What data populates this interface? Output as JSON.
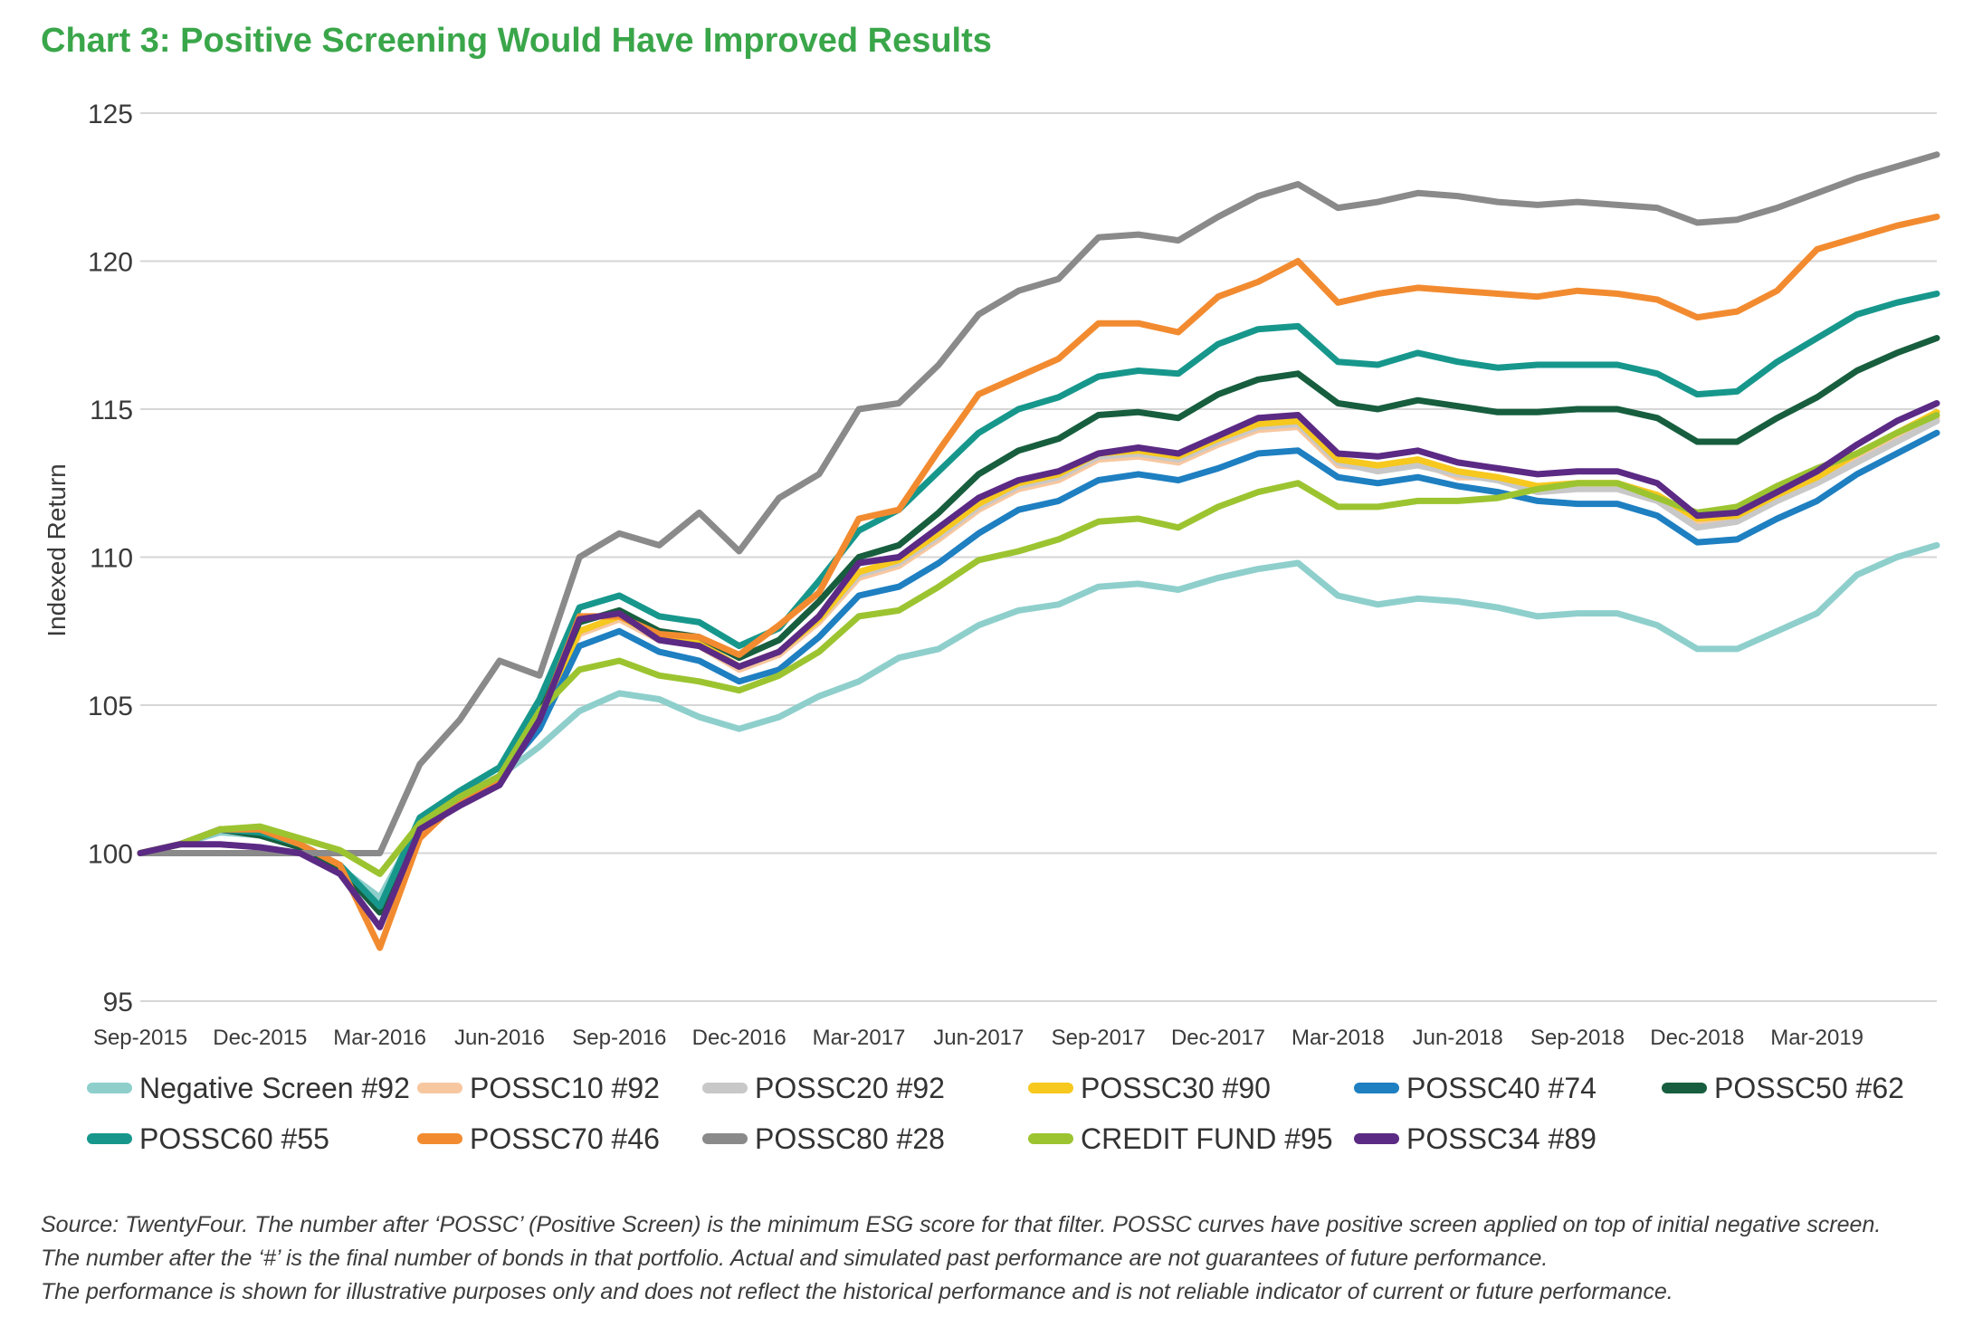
{
  "title": "Chart 3: Positive Screening Would Have Improved Results",
  "source_lines": [
    "Source: TwentyFour. The number after ‘POSSC’ (Positive Screen) is the minimum ESG score for that filter. POSSC curves have positive screen applied on top of initial negative screen.",
    "The number after the ‘#’ is the final number of bonds in that portfolio. Actual and simulated past performance are not guarantees of future performance.",
    "The performance is shown for illustrative purposes only and does not reflect the historical performance and is not reliable indicator of current or future performance."
  ],
  "chart_data": {
    "type": "line",
    "ylabel": "Indexed Return",
    "xlabel": "",
    "ylim": [
      95,
      125
    ],
    "yticks": [
      95,
      100,
      105,
      110,
      115,
      120,
      125
    ],
    "xlim": [
      "2015-09",
      "2019-06"
    ],
    "xticks": [
      "Sep-2015",
      "Dec-2015",
      "Mar-2016",
      "Jun-2016",
      "Sep-2016",
      "Dec-2016",
      "Mar-2017",
      "Jun-2017",
      "Sep-2017",
      "Dec-2017",
      "Mar-2018",
      "Jun-2018",
      "Sep-2018",
      "Dec-2018",
      "Mar-2019"
    ],
    "grid": "horizontal",
    "legend_position": "bottom",
    "x": [
      "2015-09",
      "2015-10",
      "2015-11",
      "2015-12",
      "2016-01",
      "2016-02",
      "2016-03",
      "2016-04",
      "2016-05",
      "2016-06",
      "2016-07",
      "2016-08",
      "2016-09",
      "2016-10",
      "2016-11",
      "2016-12",
      "2017-01",
      "2017-02",
      "2017-03",
      "2017-04",
      "2017-05",
      "2017-06",
      "2017-07",
      "2017-08",
      "2017-09",
      "2017-10",
      "2017-11",
      "2017-12",
      "2018-01",
      "2018-02",
      "2018-03",
      "2018-04",
      "2018-05",
      "2018-06",
      "2018-07",
      "2018-08",
      "2018-09",
      "2018-10",
      "2018-11",
      "2018-12",
      "2019-01",
      "2019-02",
      "2019-03",
      "2019-04",
      "2019-05",
      "2019-06"
    ],
    "series": [
      {
        "name": "Negative Screen #92",
        "color": "#8ecfcc",
        "values": [
          100,
          100.3,
          100.7,
          100.6,
          100.2,
          99.5,
          98.5,
          101.0,
          101.8,
          102.6,
          103.6,
          104.8,
          105.4,
          105.2,
          104.6,
          104.2,
          104.6,
          105.3,
          105.8,
          106.6,
          106.9,
          107.7,
          108.2,
          108.4,
          109.0,
          109.1,
          108.9,
          109.3,
          109.6,
          109.8,
          108.7,
          108.4,
          108.6,
          108.5,
          108.3,
          108.0,
          108.1,
          108.1,
          107.7,
          106.9,
          106.9,
          107.5,
          108.1,
          109.4,
          110.0,
          110.4
        ]
      },
      {
        "name": "POSSC10 #92",
        "color": "#f7c7a0",
        "values": [
          100,
          100.3,
          100.8,
          100.6,
          100.2,
          99.5,
          98.0,
          101.0,
          101.9,
          102.6,
          104.5,
          107.4,
          107.9,
          107.2,
          107.0,
          106.2,
          106.7,
          107.8,
          109.3,
          109.7,
          110.6,
          111.6,
          112.3,
          112.6,
          113.3,
          113.4,
          113.2,
          113.8,
          114.3,
          114.4,
          113.1,
          113.0,
          113.2,
          112.7,
          112.7,
          112.3,
          112.4,
          112.4,
          112.1,
          111.2,
          111.3,
          112.0,
          112.6,
          113.3,
          114.0,
          114.7
        ]
      },
      {
        "name": "POSSC20 #92",
        "color": "#c8c8c8",
        "values": [
          100,
          100.3,
          100.8,
          100.6,
          100.2,
          99.5,
          98.0,
          101.0,
          101.9,
          102.6,
          104.6,
          107.5,
          108.0,
          107.3,
          107.1,
          106.3,
          106.8,
          107.9,
          109.4,
          109.8,
          110.7,
          111.7,
          112.4,
          112.7,
          113.4,
          113.5,
          113.3,
          113.9,
          114.4,
          114.5,
          113.2,
          112.9,
          113.1,
          112.8,
          112.6,
          112.2,
          112.3,
          112.3,
          111.9,
          111.0,
          111.2,
          111.9,
          112.5,
          113.2,
          113.9,
          114.6
        ]
      },
      {
        "name": "POSSC30 #90",
        "color": "#f7c81e",
        "values": [
          100,
          100.3,
          100.8,
          100.6,
          100.2,
          99.5,
          98.0,
          101.0,
          101.9,
          102.6,
          104.6,
          107.5,
          108.0,
          107.3,
          107.1,
          106.3,
          106.8,
          107.9,
          109.5,
          109.9,
          110.8,
          111.8,
          112.5,
          112.8,
          113.5,
          113.6,
          113.4,
          114.0,
          114.5,
          114.6,
          113.3,
          113.1,
          113.3,
          112.9,
          112.7,
          112.4,
          112.5,
          112.5,
          112.1,
          111.3,
          111.4,
          112.1,
          112.7,
          113.5,
          114.2,
          114.9
        ]
      },
      {
        "name": "POSSC40 #74",
        "color": "#1e7fc1",
        "values": [
          100,
          100.3,
          100.8,
          100.6,
          100.2,
          99.5,
          98.0,
          101.0,
          101.9,
          102.6,
          104.2,
          107.0,
          107.5,
          106.8,
          106.5,
          105.8,
          106.2,
          107.3,
          108.7,
          109.0,
          109.8,
          110.8,
          111.6,
          111.9,
          112.6,
          112.8,
          112.6,
          113.0,
          113.5,
          113.6,
          112.7,
          112.5,
          112.7,
          112.4,
          112.2,
          111.9,
          111.8,
          111.8,
          111.4,
          110.5,
          110.6,
          111.3,
          111.9,
          112.8,
          113.5,
          114.2
        ]
      },
      {
        "name": "POSSC50 #62",
        "color": "#175e3e",
        "values": [
          100,
          100.3,
          100.8,
          100.6,
          100.2,
          99.5,
          98.0,
          101.0,
          101.9,
          102.6,
          104.7,
          107.8,
          108.2,
          107.5,
          107.3,
          106.6,
          107.2,
          108.5,
          110.0,
          110.4,
          111.5,
          112.8,
          113.6,
          114.0,
          114.8,
          114.9,
          114.7,
          115.5,
          116.0,
          116.2,
          115.2,
          115.0,
          115.3,
          115.1,
          114.9,
          114.9,
          115.0,
          115.0,
          114.7,
          113.9,
          113.9,
          114.7,
          115.4,
          116.3,
          116.9,
          117.4
        ]
      },
      {
        "name": "POSSC60 #55",
        "color": "#17978c",
        "values": [
          100,
          100.3,
          100.8,
          100.7,
          100.3,
          99.6,
          98.2,
          101.2,
          102.1,
          102.9,
          105.2,
          108.3,
          108.7,
          108.0,
          107.8,
          107.0,
          107.6,
          109.2,
          110.9,
          111.6,
          112.9,
          114.2,
          115.0,
          115.4,
          116.1,
          116.3,
          116.2,
          117.2,
          117.7,
          117.8,
          116.6,
          116.5,
          116.9,
          116.6,
          116.4,
          116.5,
          116.5,
          116.5,
          116.2,
          115.5,
          115.6,
          116.6,
          117.4,
          118.2,
          118.6,
          118.9
        ]
      },
      {
        "name": "POSSC70 #46",
        "color": "#f28b30",
        "values": [
          100,
          100.3,
          100.8,
          100.8,
          100.3,
          99.6,
          96.8,
          100.5,
          101.8,
          102.4,
          104.5,
          108.0,
          108.0,
          107.4,
          107.3,
          106.7,
          107.7,
          108.8,
          111.3,
          111.6,
          113.6,
          115.5,
          116.1,
          116.7,
          117.9,
          117.9,
          117.6,
          118.8,
          119.3,
          120.0,
          118.6,
          118.9,
          119.1,
          119.0,
          118.9,
          118.8,
          119.0,
          118.9,
          118.7,
          118.1,
          118.3,
          119.0,
          120.4,
          120.8,
          121.2,
          121.5
        ]
      },
      {
        "name": "POSSC80 #28",
        "color": "#8a8a8a",
        "values": [
          100,
          100,
          100,
          100,
          100,
          100,
          100,
          103.0,
          104.5,
          106.5,
          106.0,
          110.0,
          110.8,
          110.4,
          111.5,
          110.2,
          112.0,
          112.8,
          115.0,
          115.2,
          116.5,
          118.2,
          119.0,
          119.4,
          120.8,
          120.9,
          120.7,
          121.5,
          122.2,
          122.6,
          121.8,
          122.0,
          122.3,
          122.2,
          122.0,
          121.9,
          122.0,
          121.9,
          121.8,
          121.3,
          121.4,
          121.8,
          122.3,
          122.8,
          123.2,
          123.6
        ]
      },
      {
        "name": "CREDIT FUND #95",
        "color": "#9cc430",
        "values": [
          100,
          100.3,
          100.8,
          100.9,
          100.5,
          100.1,
          99.3,
          101.0,
          101.9,
          102.6,
          104.8,
          106.2,
          106.5,
          106.0,
          105.8,
          105.5,
          106.0,
          106.8,
          108.0,
          108.2,
          109.0,
          109.9,
          110.2,
          110.6,
          111.2,
          111.3,
          111.0,
          111.7,
          112.2,
          112.5,
          111.7,
          111.7,
          111.9,
          111.9,
          112.0,
          112.3,
          112.5,
          112.5,
          112.0,
          111.5,
          111.7,
          112.4,
          113.0,
          113.5,
          114.2,
          114.8
        ]
      },
      {
        "name": "POSSC34 #89",
        "color": "#5b2a84",
        "values": [
          100,
          100.3,
          100.3,
          100.2,
          100.0,
          99.3,
          97.5,
          100.8,
          101.6,
          102.3,
          104.5,
          107.9,
          108.1,
          107.2,
          107.0,
          106.3,
          106.8,
          108.0,
          109.8,
          110.0,
          111.0,
          112.0,
          112.6,
          112.9,
          113.5,
          113.7,
          113.5,
          114.1,
          114.7,
          114.8,
          113.5,
          113.4,
          113.6,
          113.2,
          113.0,
          112.8,
          112.9,
          112.9,
          112.5,
          111.4,
          111.5,
          112.2,
          112.9,
          113.8,
          114.6,
          115.2
        ]
      }
    ]
  }
}
